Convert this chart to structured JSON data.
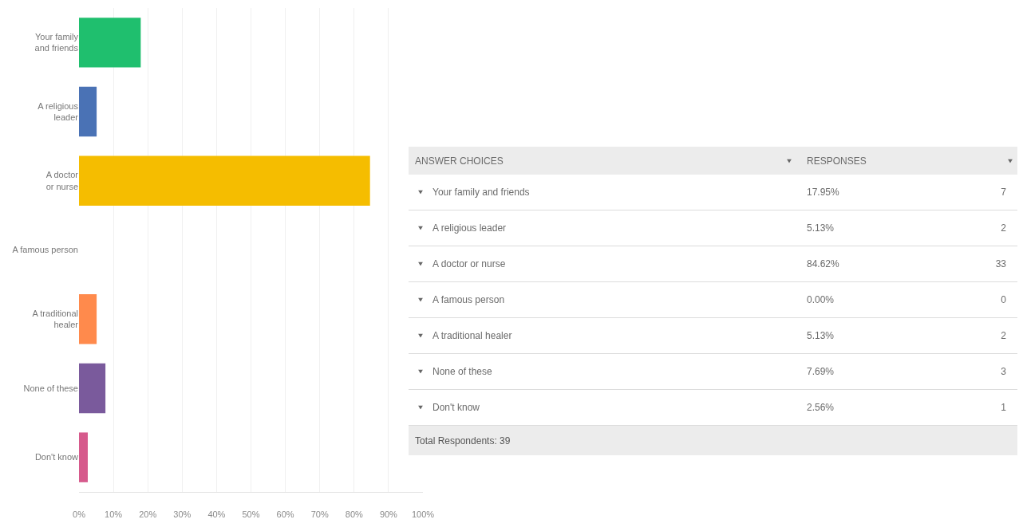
{
  "chart_data": {
    "type": "bar",
    "orientation": "horizontal",
    "categories": [
      "Your family and friends",
      "A religious leader",
      "A doctor or nurse",
      "A famous person",
      "A traditional healer",
      "None of these",
      "Don't know"
    ],
    "values": [
      17.95,
      5.13,
      84.62,
      0,
      5.13,
      7.69,
      2.56
    ],
    "colors": [
      "#1fbf6e",
      "#4a72b5",
      "#f5bd00",
      "#9b9b9b",
      "#ff8a4c",
      "#7a5a9c",
      "#d65a8c"
    ],
    "xlim": [
      0,
      100
    ],
    "xticks": [
      {
        "value": 0,
        "label": "0%"
      },
      {
        "value": 10,
        "label": "10%"
      },
      {
        "value": 20,
        "label": "20%"
      },
      {
        "value": 30,
        "label": "30%"
      },
      {
        "value": 40,
        "label": "40%"
      },
      {
        "value": 50,
        "label": "50%"
      },
      {
        "value": 60,
        "label": "60%"
      },
      {
        "value": 70,
        "label": "70%"
      },
      {
        "value": 80,
        "label": "80%"
      },
      {
        "value": 90,
        "label": "90%"
      },
      {
        "value": 100,
        "label": "100%"
      }
    ],
    "grid": "x",
    "legend": false,
    "annotations": [
      "ANSWER CHOICES",
      "RESPONSES",
      "17.95%",
      "5.13%",
      "84.62%",
      "0.00%",
      "5.13%",
      "7.69%",
      "2.56%",
      "7",
      "2",
      "33",
      "0",
      "2",
      "3",
      "1",
      "Total Respondents: 39"
    ]
  }
}
